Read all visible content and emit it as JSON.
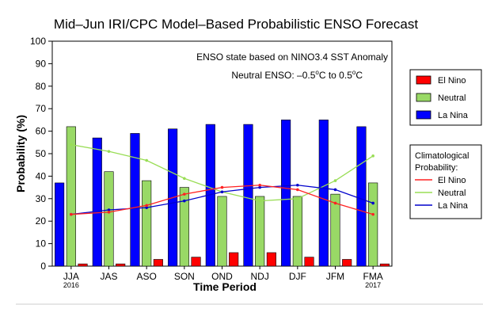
{
  "chart_data": {
    "type": "bar",
    "title": "Mid–Jun IRI/CPC Model–Based Probabilistic ENSO Forecast",
    "xlabel": "Time Period",
    "ylabel": "Probability (%)",
    "ylim": [
      0,
      100
    ],
    "yticks": [
      0,
      10,
      20,
      30,
      40,
      50,
      60,
      70,
      80,
      90,
      100
    ],
    "categories": [
      "JJA",
      "JAS",
      "ASO",
      "SON",
      "OND",
      "NDJ",
      "DJF",
      "JFM",
      "FMA"
    ],
    "year_labels": [
      {
        "category_index": 0,
        "text": "2016"
      },
      {
        "category_index": 8,
        "text": "2017"
      }
    ],
    "annotations": {
      "line1": "ENSO state based on NINO3.4 SST Anomaly",
      "line2_prefix": "Neutral ENSO: –0.5",
      "line2_mid": "C to 0.5",
      "line2_deg": "o",
      "line2_suffix": "C"
    },
    "series": [
      {
        "name": "El Nino",
        "color": "#ff0000",
        "values": [
          1,
          1,
          3,
          4,
          6,
          6,
          4,
          3,
          1
        ]
      },
      {
        "name": "Neutral",
        "color": "#99d966",
        "values": [
          62,
          42,
          38,
          35,
          31,
          31,
          31,
          32,
          37
        ]
      },
      {
        "name": "La Nina",
        "color": "#0000ff",
        "values": [
          37,
          57,
          59,
          61,
          63,
          63,
          65,
          65,
          62
        ]
      }
    ],
    "climatology": {
      "title_line1": "Climatological",
      "title_line2": "Probability:",
      "series": [
        {
          "name": "El Nino",
          "color": "#ff2222",
          "values": [
            23,
            24,
            27,
            32,
            35,
            36,
            34,
            28,
            23
          ]
        },
        {
          "name": "Neutral",
          "color": "#99dd55",
          "values": [
            54,
            51,
            47,
            39,
            33,
            29,
            30,
            38,
            49
          ]
        },
        {
          "name": "La Nina",
          "color": "#0000cc",
          "values": [
            23,
            25,
            26,
            29,
            33,
            35,
            36,
            34,
            28
          ]
        }
      ]
    },
    "legend_placement": "right",
    "grid": false
  }
}
